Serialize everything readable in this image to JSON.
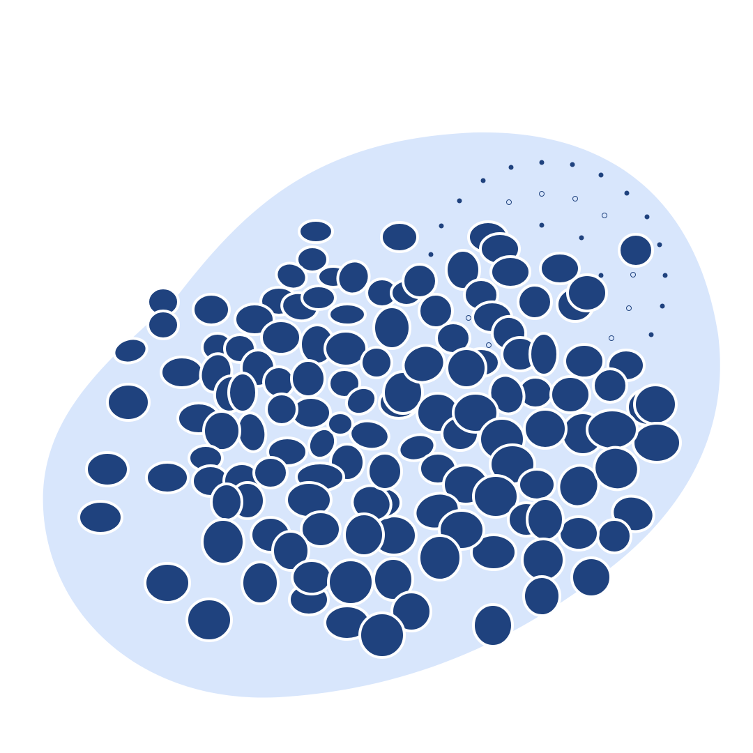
{
  "colors": {
    "background": "#ffffff",
    "blob": "#d8e6fc",
    "ellipse_fill": "#1f427e",
    "ellipse_stroke": "#ffffff"
  },
  "icons": {
    "cluster": "ellipse-cluster-illustration"
  }
}
